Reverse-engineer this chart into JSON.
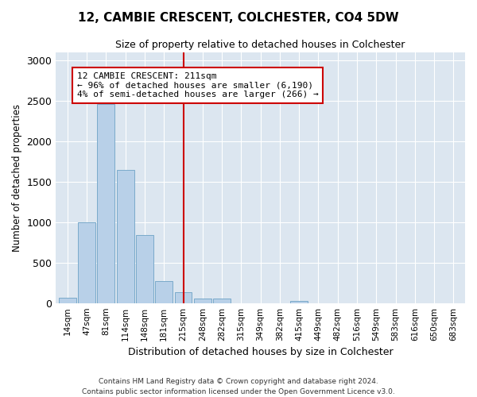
{
  "title": "12, CAMBIE CRESCENT, COLCHESTER, CO4 5DW",
  "subtitle": "Size of property relative to detached houses in Colchester",
  "xlabel": "Distribution of detached houses by size in Colchester",
  "ylabel": "Number of detached properties",
  "bar_color": "#b8d0e8",
  "bar_edge_color": "#7aaacb",
  "background_color": "#dce6f0",
  "grid_color": "#ffffff",
  "categories": [
    "14sqm",
    "47sqm",
    "81sqm",
    "114sqm",
    "148sqm",
    "181sqm",
    "215sqm",
    "248sqm",
    "282sqm",
    "315sqm",
    "349sqm",
    "382sqm",
    "415sqm",
    "449sqm",
    "482sqm",
    "516sqm",
    "549sqm",
    "583sqm",
    "616sqm",
    "650sqm",
    "683sqm"
  ],
  "values": [
    70,
    995,
    2460,
    1640,
    840,
    270,
    130,
    60,
    55,
    0,
    0,
    0,
    30,
    0,
    0,
    0,
    0,
    0,
    0,
    0,
    0
  ],
  "vline_x": 6.0,
  "vline_color": "#cc0000",
  "annotation_line1": "12 CAMBIE CRESCENT: 211sqm",
  "annotation_line2": "← 96% of detached houses are smaller (6,190)",
  "annotation_line3": "4% of semi-detached houses are larger (266) →",
  "ylim": [
    0,
    3100
  ],
  "footnote1": "Contains HM Land Registry data © Crown copyright and database right 2024.",
  "footnote2": "Contains public sector information licensed under the Open Government Licence v3.0."
}
